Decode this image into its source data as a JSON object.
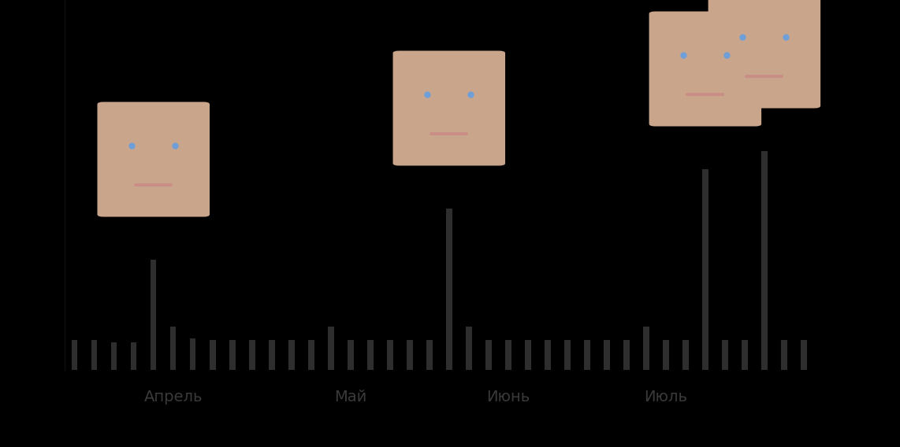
{
  "chart_data": {
    "type": "bar",
    "categories": [
      null,
      null,
      null,
      null,
      null,
      "Апрель",
      null,
      null,
      null,
      null,
      null,
      null,
      null,
      null,
      "Май",
      null,
      null,
      null,
      null,
      null,
      null,
      null,
      "Июнь",
      null,
      null,
      null,
      null,
      null,
      null,
      null,
      "Июль",
      null,
      null,
      null,
      null,
      null,
      null,
      null
    ],
    "values": [
      3.8,
      3.8,
      3.5,
      3.5,
      14,
      5.5,
      4,
      3.8,
      3.8,
      3.8,
      3.8,
      3.8,
      3.8,
      5.5,
      3.8,
      3.8,
      3.8,
      3.8,
      3.8,
      20.5,
      5.5,
      3.8,
      3.8,
      3.8,
      3.8,
      3.8,
      3.8,
      3.8,
      3.8,
      5.5,
      3.8,
      3.8,
      25.5,
      3.8,
      3.8,
      27.8,
      3.8,
      3.8
    ],
    "color": "#2e2e2e",
    "ylim": [
      0,
      47
    ],
    "tick_labels": "x"
  }
}
